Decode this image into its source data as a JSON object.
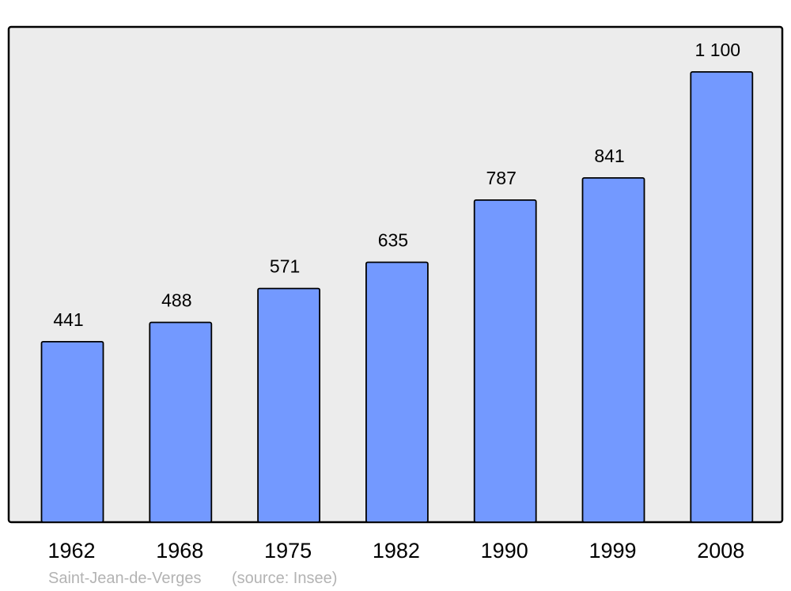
{
  "chart_data": {
    "type": "bar",
    "categories": [
      "1962",
      "1968",
      "1975",
      "1982",
      "1990",
      "1999",
      "2008"
    ],
    "values": [
      441,
      488,
      571,
      635,
      787,
      841,
      1100
    ],
    "data_labels": [
      "441",
      "488",
      "571",
      "635",
      "787",
      "841",
      "1 100"
    ],
    "title": "",
    "xlabel": "",
    "ylabel": "",
    "ylim": [
      0,
      1210
    ],
    "grid": false,
    "colors": {
      "bar": "#7399ff",
      "plot_background": "#ececec",
      "frame": "#000000",
      "footer_text": "#b3b3b3"
    }
  },
  "footer": {
    "place": "Saint-Jean-de-Verges",
    "source": "(source: Insee)"
  }
}
